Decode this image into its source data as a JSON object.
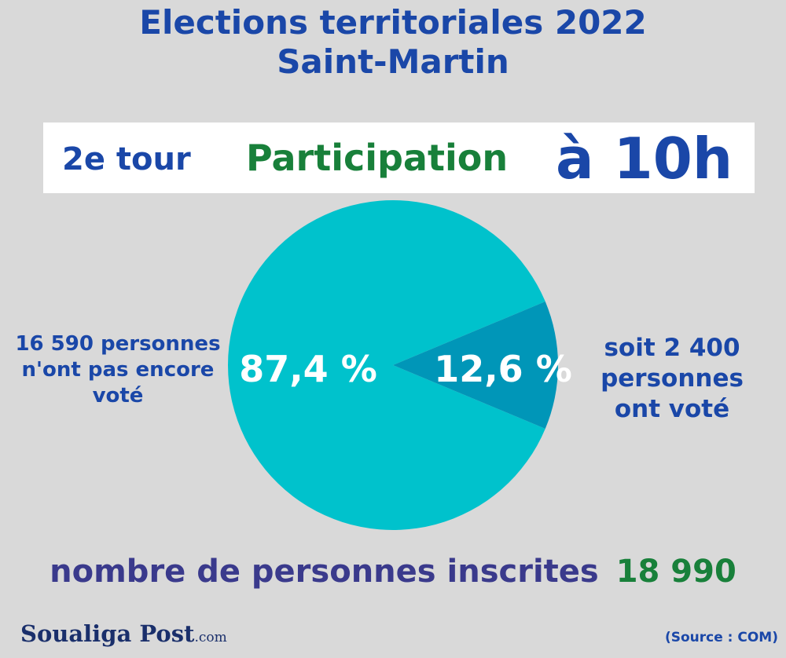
{
  "header": {
    "title_line1": "Elections territoriales 2022",
    "title_line2": "Saint-Martin"
  },
  "banner": {
    "round": "2e tour",
    "label": "Participation",
    "time": "à 10h"
  },
  "chart_data": {
    "type": "pie",
    "title": "",
    "slices": [
      {
        "label": "87,4 %",
        "value": 87.4,
        "color": "#00c2cc"
      },
      {
        "label": "12,6 %",
        "value": 12.6,
        "color": "#0096b8"
      }
    ]
  },
  "annotations": {
    "left_line1": "16 590 personnes",
    "left_line2": "n'ont pas encore",
    "left_line3": "voté",
    "right_line1": "soit  2 400",
    "right_line2": "personnes",
    "right_line3": "ont voté"
  },
  "footer": {
    "inscrits_label": "nombre de personnes inscrites",
    "inscrits_value": "18 990",
    "logo_name": "Soualiga Post",
    "logo_suffix": ".com",
    "source": "(Source : COM)"
  },
  "colors": {
    "title_blue": "#1a47a8",
    "green": "#18803a",
    "background": "#d9d9d9"
  }
}
